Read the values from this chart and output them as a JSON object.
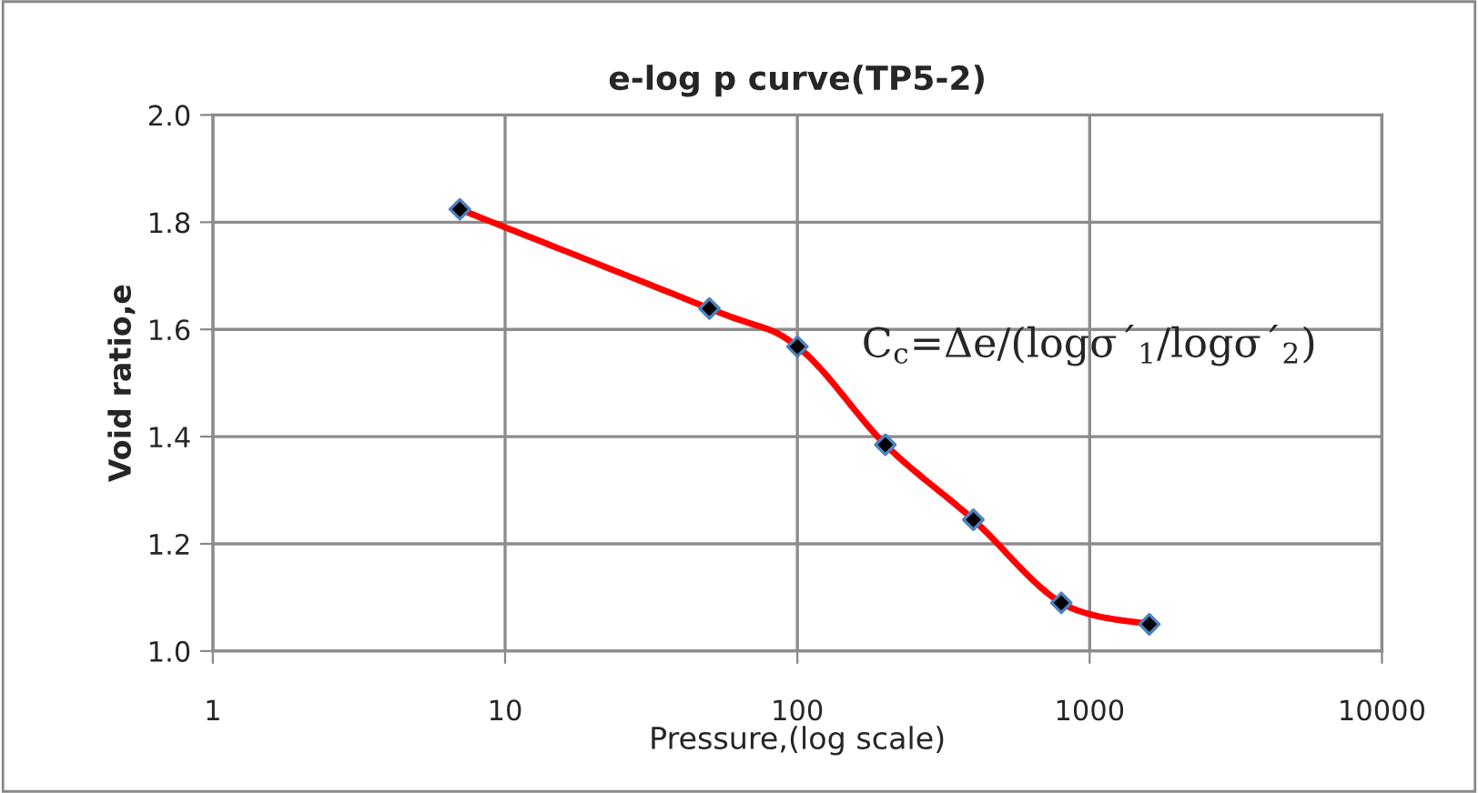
{
  "chart_data": {
    "type": "line",
    "title": "e-log p curve(TP5-2)",
    "xlabel": "Pressure,(log scale)",
    "ylabel": "Void ratio,e",
    "x": [
      7,
      50,
      100,
      200,
      400,
      800,
      1600
    ],
    "series": [
      {
        "color": "#ff0000",
        "values": [
          1.824,
          1.639,
          1.568,
          1.385,
          1.245,
          1.09,
          1.05
        ]
      }
    ],
    "log": "x",
    "xlim": [
      1,
      10000
    ],
    "xticks": [
      1,
      10,
      100,
      1000,
      10000
    ],
    "ylim": [
      1.0,
      2.0
    ],
    "yticks": [
      {
        "value": 1.0,
        "label": "1.0"
      },
      {
        "value": 1.2,
        "label": "1.2"
      },
      {
        "value": 1.4,
        "label": "1.4"
      },
      {
        "value": 1.6,
        "label": "1.6"
      },
      {
        "value": 1.8,
        "label": "1.8"
      },
      {
        "value": 2.0,
        "label": "2.0"
      }
    ],
    "grid": true,
    "marker": "diamond",
    "line_style": "solid",
    "legend": false,
    "annotations": [
      "C$_{c}$=Δe/(logσ´$_{1}$/logσ´$_{2}$)"
    ]
  }
}
